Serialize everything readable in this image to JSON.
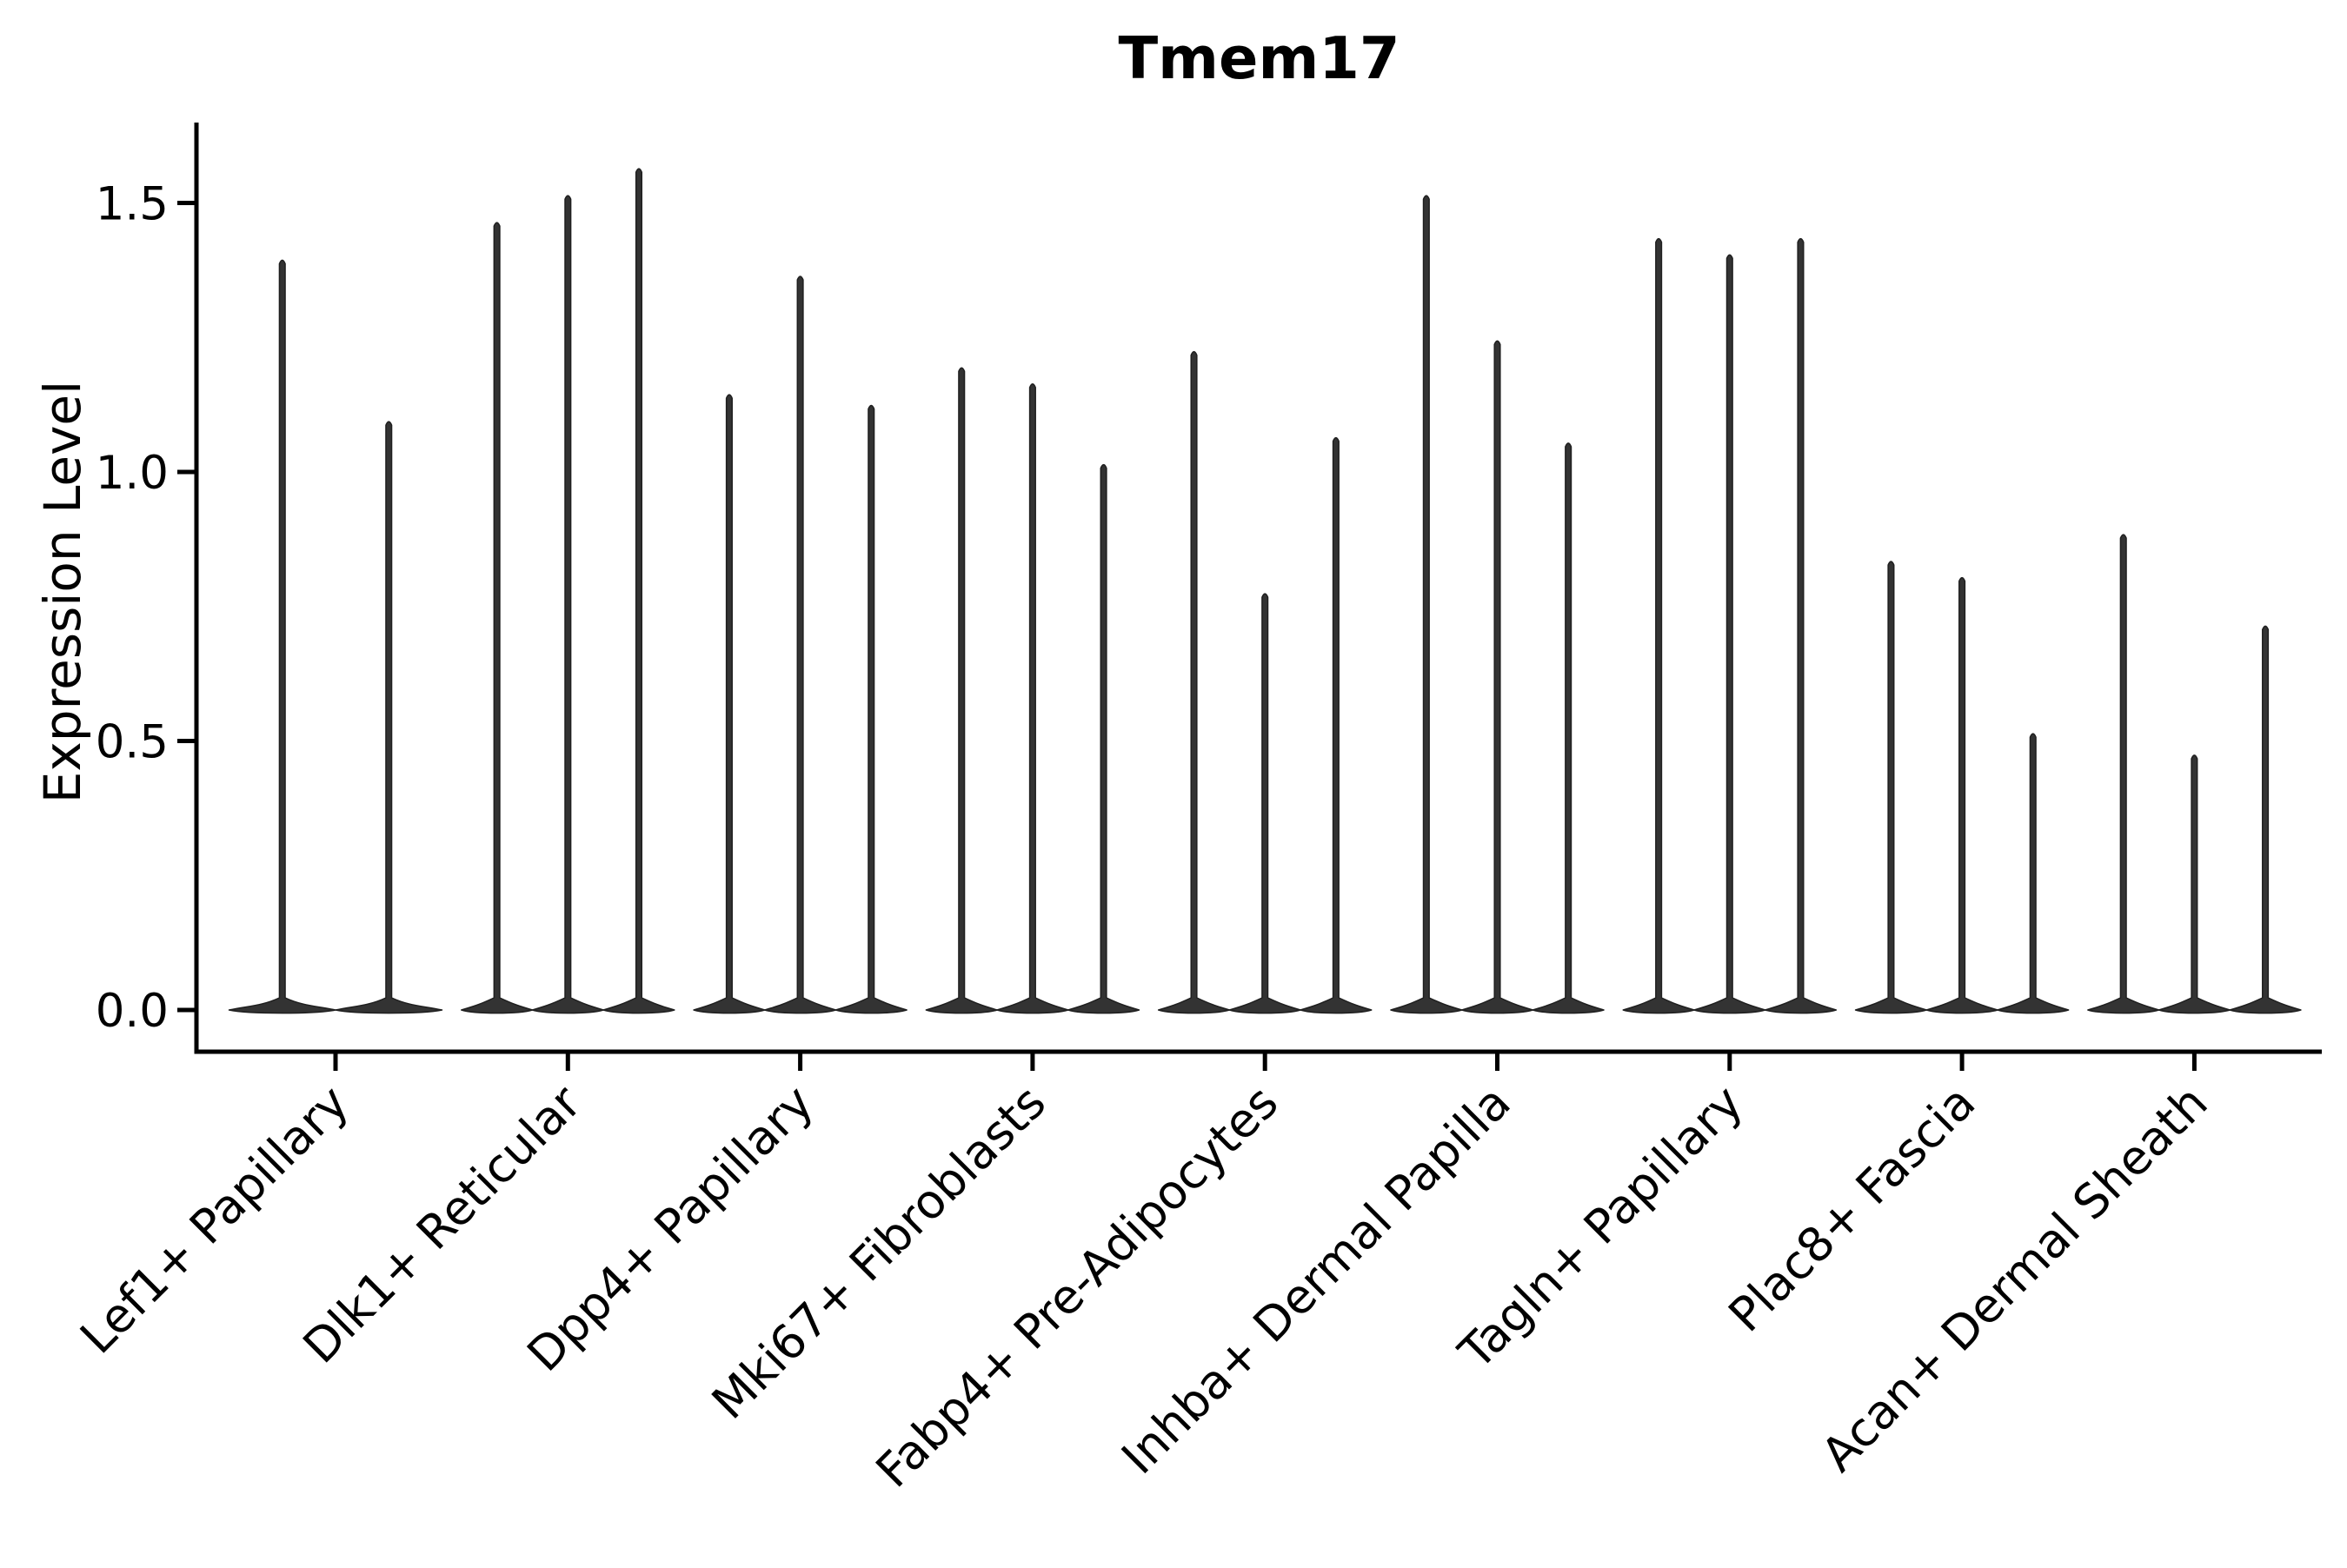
{
  "chart_data": {
    "type": "violin",
    "title": "Tmem17",
    "ylabel": "Expression Level",
    "xlabel": "",
    "y_ticks": [
      0.0,
      0.5,
      1.0,
      1.5
    ],
    "ylim": [
      -0.08,
      1.65
    ],
    "grid": false,
    "legend": "none",
    "x_tick_rotation_deg": 45,
    "baseline_value": 0.0,
    "axis_color": "#000000",
    "violin_fill": "#333333",
    "violin_stroke": "#1f1f1f",
    "groups": [
      {
        "label": "Lef1+ Papillary",
        "violin_maxima": [
          1.4,
          1.1
        ]
      },
      {
        "label": "Dlk1+ Reticular",
        "violin_maxima": [
          1.47,
          1.52,
          1.57
        ]
      },
      {
        "label": "Dpp4+ Papillary",
        "violin_maxima": [
          1.15,
          1.37,
          1.13
        ]
      },
      {
        "label": "Mki67+ Fibroblasts",
        "violin_maxima": [
          1.2,
          1.17,
          1.02
        ]
      },
      {
        "label": "Fabp4+ Pre-Adipocytes",
        "violin_maxima": [
          1.23,
          0.78,
          1.07
        ]
      },
      {
        "label": "Inhba+ Dermal Papilla",
        "violin_maxima": [
          1.52,
          1.25,
          1.06
        ]
      },
      {
        "label": "Tagln+ Papillary",
        "violin_maxima": [
          1.44,
          1.41,
          1.44
        ]
      },
      {
        "label": "Plac8+ Fascia",
        "violin_maxima": [
          0.84,
          0.81,
          0.52
        ]
      },
      {
        "label": "Acan+ Dermal Sheath",
        "violin_maxima": [
          0.89,
          0.48,
          0.72
        ]
      }
    ]
  }
}
